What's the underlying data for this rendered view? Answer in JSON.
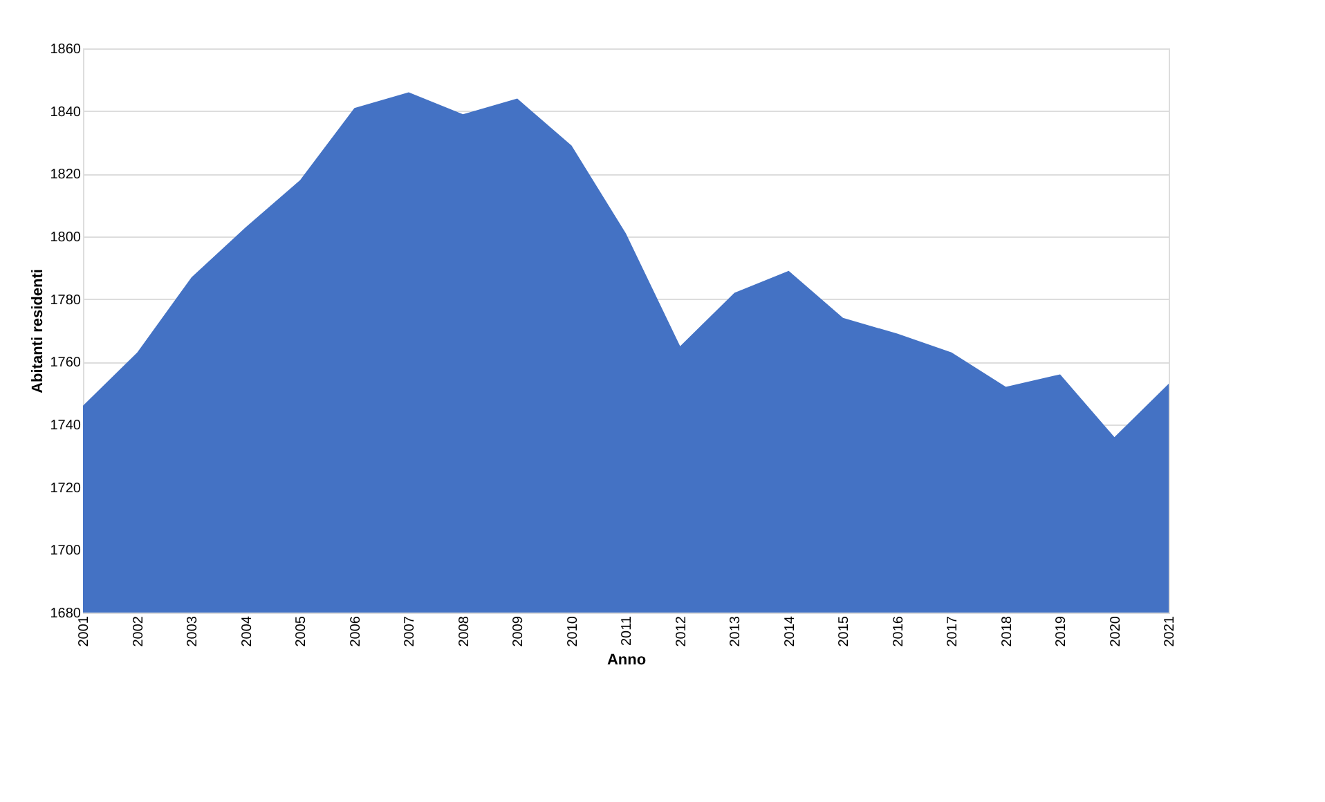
{
  "chart_data": {
    "type": "area",
    "xlabel": "Anno",
    "ylabel": "Abitanti residenti",
    "categories": [
      "2001",
      "2002",
      "2003",
      "2004",
      "2005",
      "2006",
      "2007",
      "2008",
      "2009",
      "2010",
      "2011",
      "2012",
      "2013",
      "2014",
      "2015",
      "2016",
      "2017",
      "2018",
      "2019",
      "2020",
      "2021"
    ],
    "series": [
      {
        "color": "#4472c4",
        "values": [
          1746,
          1763,
          1787,
          1803,
          1818,
          1841,
          1846,
          1839,
          1844,
          1829,
          1801,
          1765,
          1782,
          1789,
          1774,
          1769,
          1763,
          1752,
          1756,
          1736,
          1753
        ]
      }
    ],
    "ylim": [
      1680,
      1860
    ],
    "yticks": [
      1680,
      1700,
      1720,
      1740,
      1760,
      1780,
      1800,
      1820,
      1840,
      1860
    ],
    "grid": "y"
  }
}
